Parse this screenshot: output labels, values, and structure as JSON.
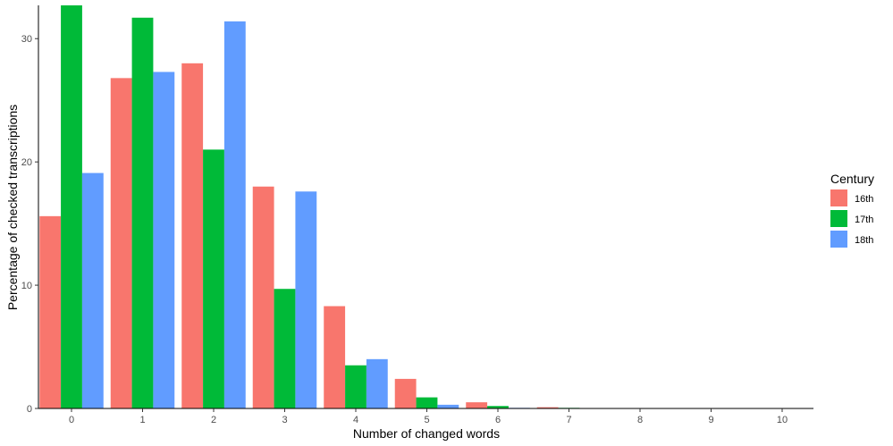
{
  "chart_data": {
    "type": "bar",
    "title": "",
    "xlabel": "Number of changed words",
    "ylabel": "Percentage of checked transcriptions",
    "categories": [
      "0",
      "1",
      "2",
      "3",
      "4",
      "5",
      "6",
      "7",
      "8",
      "9",
      "10"
    ],
    "series": [
      {
        "name": "16th",
        "color": "#F8766D",
        "values": [
          15.6,
          26.8,
          28.0,
          18.0,
          8.3,
          2.4,
          0.5,
          0.1,
          0.02,
          0.01,
          0.01
        ]
      },
      {
        "name": "17th",
        "color": "#00BA38",
        "values": [
          32.7,
          31.7,
          21.0,
          9.7,
          3.5,
          0.9,
          0.2,
          0.05,
          0.02,
          0.01,
          0.01
        ]
      },
      {
        "name": "18th",
        "color": "#619CFF",
        "values": [
          19.1,
          27.3,
          31.4,
          17.6,
          4.0,
          0.3,
          0.05,
          0.03,
          0.02,
          0.01,
          0.01
        ]
      }
    ],
    "ylim": [
      0,
      32.7
    ],
    "yticks": [
      0,
      10,
      20,
      30
    ],
    "grid": false,
    "legend": {
      "title": "Century",
      "placement": "right"
    }
  }
}
